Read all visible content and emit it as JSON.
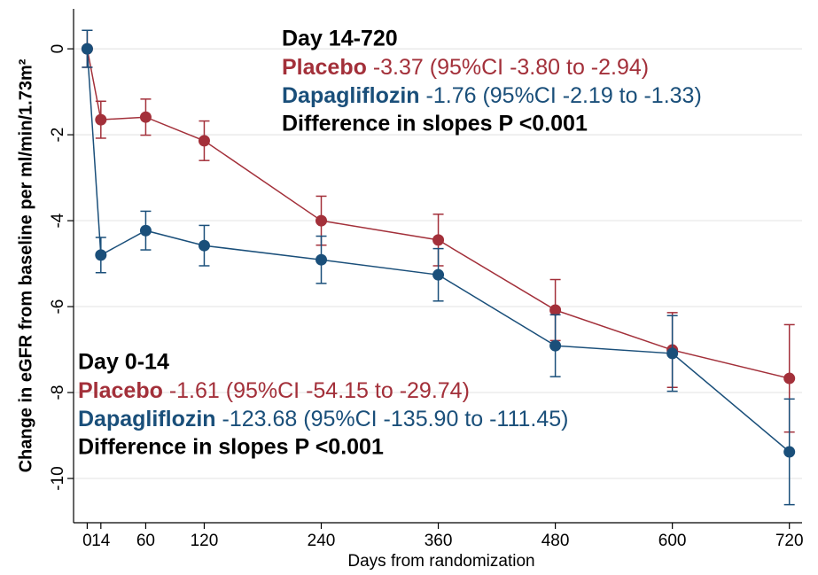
{
  "chart_data": {
    "type": "line",
    "x_label": "Days from randomization",
    "y_label": "Change in eGFR from baseline per ml/min/1.73m²",
    "x": [
      0,
      14,
      60,
      120,
      240,
      360,
      480,
      600,
      720
    ],
    "xlim": [
      -14,
      733
    ],
    "xticks": [
      {
        "value": 0,
        "label": "0"
      },
      {
        "value": 14,
        "label": "14"
      },
      60,
      120,
      240,
      360,
      480,
      600,
      720
    ],
    "ylim": [
      -11.03,
      0.93
    ],
    "yticks": [
      0,
      -2,
      -4,
      -6,
      -8,
      -10
    ],
    "grid": true,
    "series": [
      {
        "name": "Placebo",
        "color": "#a3303a",
        "values": [
          0,
          -1.65,
          -1.59,
          -2.14,
          -4.0,
          -4.45,
          -6.08,
          -7.01,
          -7.67
        ],
        "errors": [
          0.43,
          0.43,
          0.42,
          0.46,
          0.57,
          0.6,
          0.71,
          0.87,
          1.25
        ]
      },
      {
        "name": "Dapagliflozin",
        "color": "#1a4f7a",
        "values": [
          0,
          -4.8,
          -4.23,
          -4.58,
          -4.91,
          -5.26,
          -6.91,
          -7.09,
          -9.38
        ],
        "errors": [
          0.43,
          0.41,
          0.45,
          0.47,
          0.55,
          0.61,
          0.72,
          0.88,
          1.23
        ]
      }
    ],
    "annotations": [
      {
        "heading": "Day 14-720",
        "lines": [
          "-3.37 (95%CI -3.80 to -2.94)",
          "-1.76 (95%CI -2.19 to -1.33)"
        ],
        "footer": "Difference in slopes P <0.001"
      },
      {
        "heading": "Day 0-14",
        "lines": [
          "-1.61 (95%CI -54.15 to -29.74)",
          "-123.68 (95%CI -135.90 to -111.45)"
        ],
        "footer": "Difference in slopes P <0.001"
      }
    ]
  }
}
